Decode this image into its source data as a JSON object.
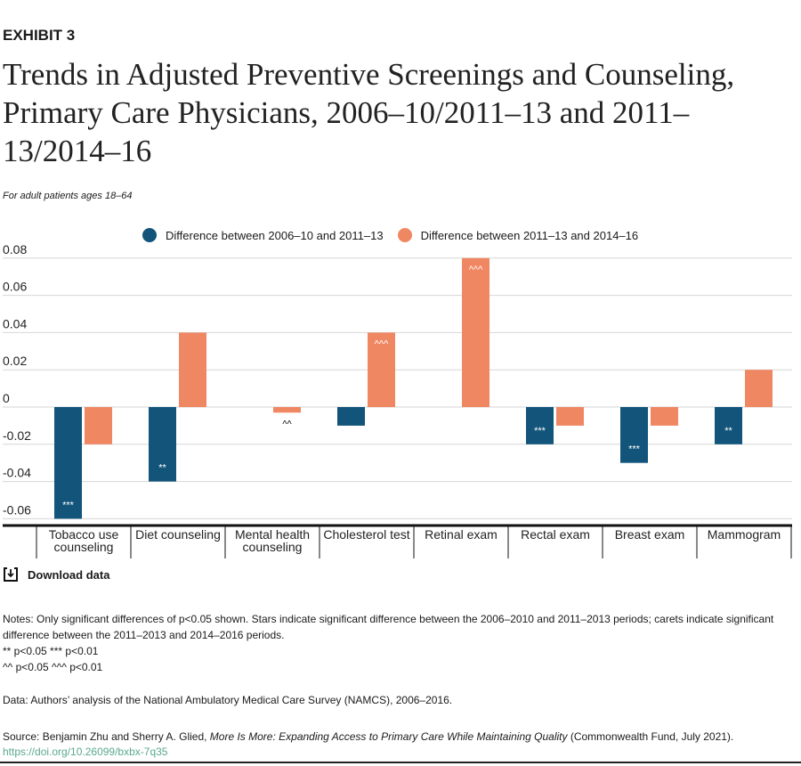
{
  "exhibit": "EXHIBIT 3",
  "title": "Trends in Adjusted Preventive Screenings and Counseling, Primary Care Physicians, 2006–10/2011–13 and 2011–13/2014–16",
  "subtitle": "For adult patients ages 18–64",
  "download": "Download data",
  "notes": {
    "line1": "Notes: Only significant differences of p<0.05 shown. Stars indicate significant difference between the 2006–2010 and 2011–2013 periods; carets indicate significant difference between the 2011–2013 and 2014–2016 periods.",
    "line2": "** p<0.05 *** p<0.01",
    "line3": "^^ p<0.05 ^^^ p<0.01"
  },
  "data_note": "Data: Authors’ analysis of the National Ambulatory Medical Care Survey (NAMCS), 2006–2016.",
  "source": {
    "prefix": "Source: Benjamin Zhu and Sherry A. Glied, ",
    "italic": "More Is More: Expanding Access to Primary Care While Maintaining Quality",
    "suffix": " (Commonwealth Fund, July 2021).",
    "link": "https://doi.org/10.26099/bxbx-7q35"
  },
  "chart_data": {
    "type": "bar",
    "categories": [
      "Tobacco use counseling",
      "Diet counseling",
      "Mental health counseling",
      "Cholesterol test",
      "Retinal exam",
      "Rectal exam",
      "Breast exam",
      "Mammogram"
    ],
    "series": [
      {
        "name": "Difference between 2006–10 and 2011–13",
        "color": "#12547a",
        "values": [
          -0.06,
          -0.04,
          null,
          -0.01,
          null,
          -0.02,
          -0.03,
          -0.02
        ],
        "labels": [
          "***",
          "**",
          "",
          "",
          "",
          "***",
          "***",
          "**"
        ]
      },
      {
        "name": "Difference between 2011–13 and 2014–16",
        "color": "#f08763",
        "values": [
          -0.02,
          0.04,
          -0.003,
          0.04,
          0.08,
          -0.01,
          -0.01,
          0.02
        ],
        "labels": [
          "",
          "",
          "^^",
          "^^^",
          "^^^",
          "",
          "",
          ""
        ]
      }
    ],
    "yticks": [
      0.08,
      0.06,
      0.04,
      0.02,
      0,
      -0.02,
      -0.04,
      -0.06
    ],
    "ytick_labels": [
      "0.08",
      "0.06",
      "0.04",
      "0.02",
      "0",
      "-0.02",
      "-0.04",
      "-0.06"
    ],
    "ylim": [
      -0.06,
      0.08
    ],
    "grid": true,
    "legend": "top"
  }
}
